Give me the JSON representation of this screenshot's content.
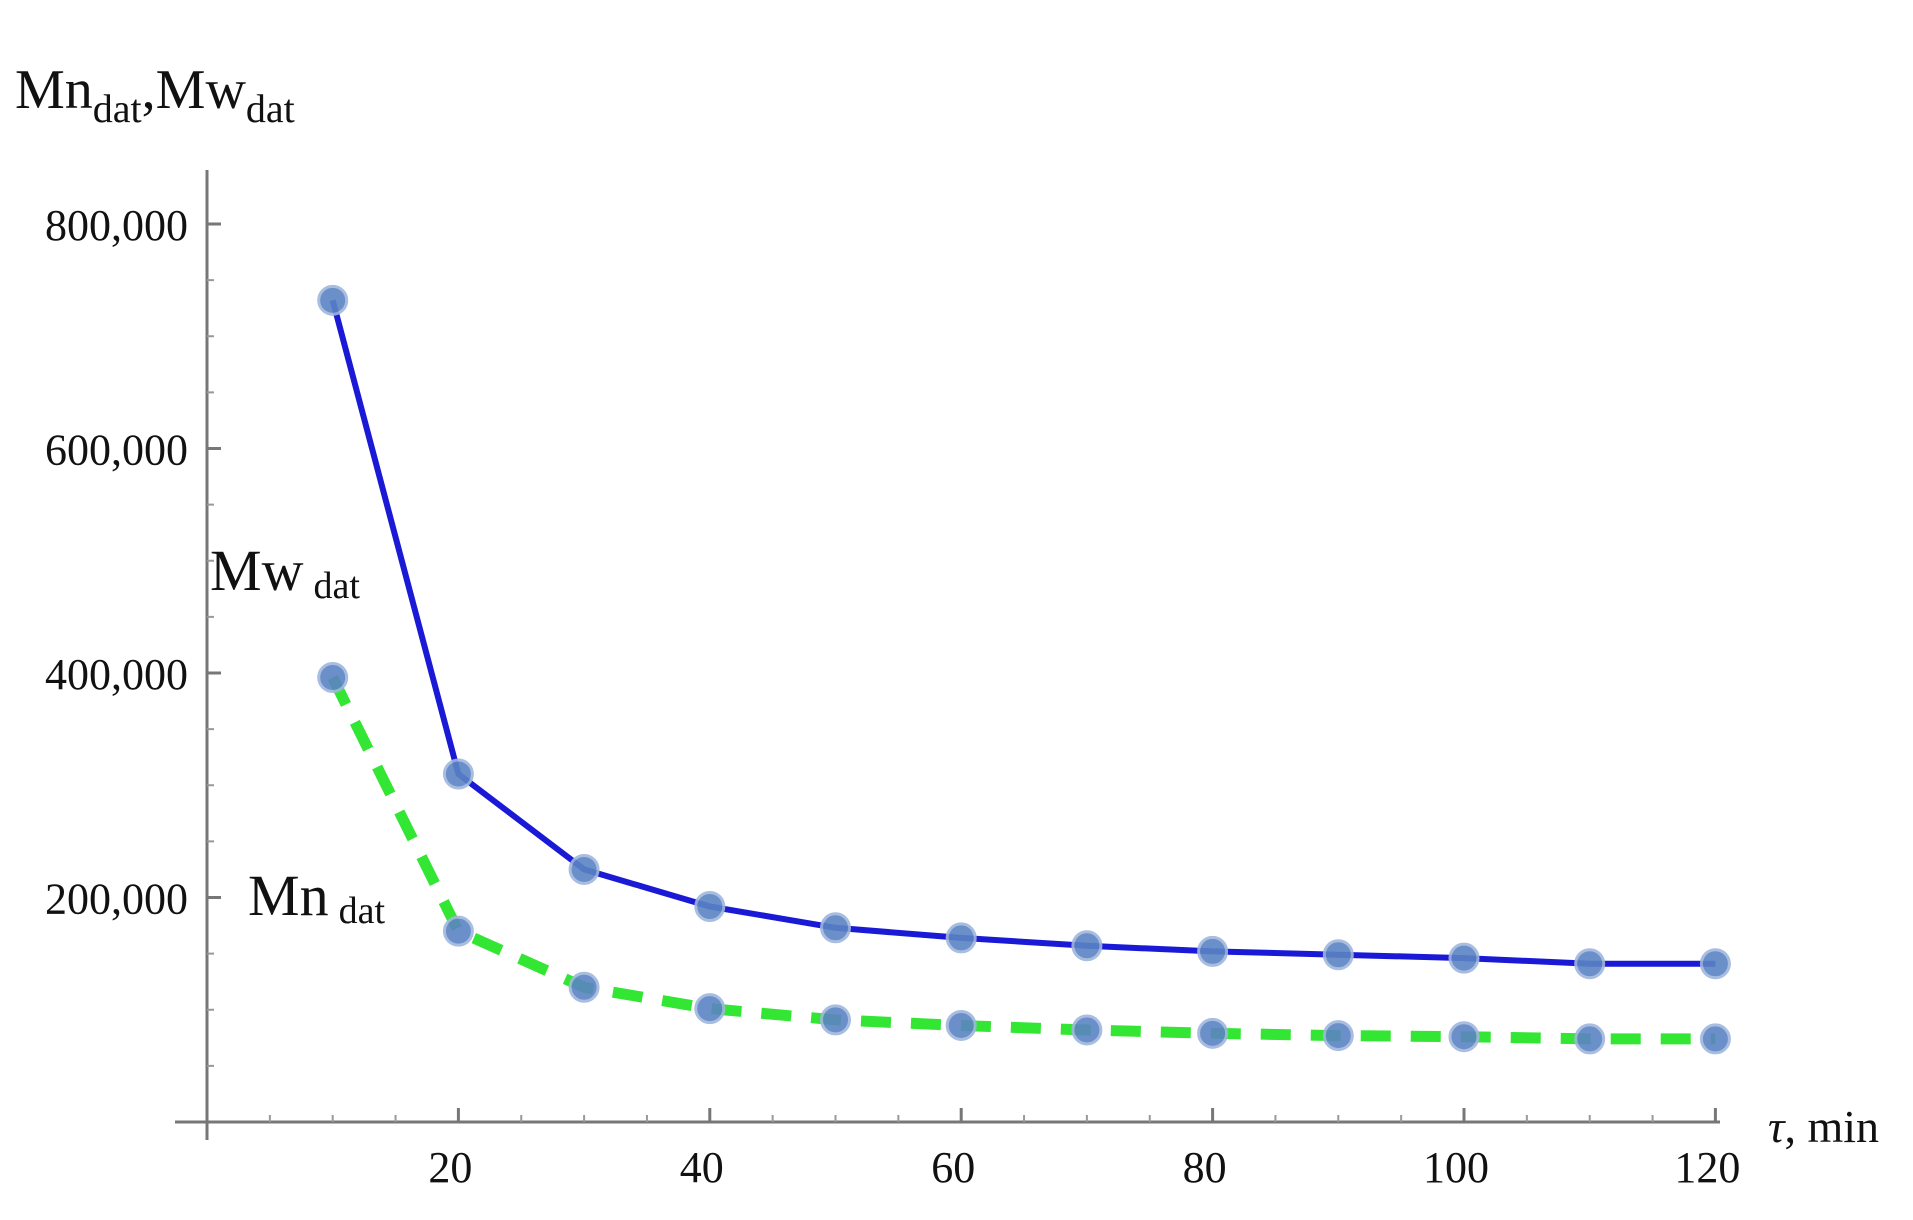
{
  "chart_data": {
    "type": "line",
    "title": "",
    "ylabel": {
      "main1": "Mn",
      "sub1": "dat",
      "sep": ",",
      "main2": "Mw",
      "sub2": "dat"
    },
    "xlabel": {
      "main": "τ",
      "rest": ", min"
    },
    "x": [
      10,
      20,
      30,
      40,
      50,
      60,
      70,
      80,
      90,
      100,
      110,
      120
    ],
    "xlim": [
      0,
      122
    ],
    "ylim": [
      0,
      800000
    ],
    "xticks": [
      20,
      40,
      60,
      80,
      100,
      120
    ],
    "xtick_labels": [
      "20",
      "40",
      "60",
      "80",
      "100",
      "120"
    ],
    "yticks": [
      200000,
      400000,
      600000,
      800000
    ],
    "ytick_labels": [
      "200,000",
      "400,000",
      "600,000",
      "800,000"
    ],
    "grid": false,
    "series": [
      {
        "key": "mw",
        "label": {
          "main": "Mw",
          "sub": "dat"
        },
        "color": "#1a1ad6",
        "style": "solid",
        "values": [
          732000,
          310000,
          225000,
          192000,
          173000,
          164000,
          157000,
          152000,
          149000,
          146000,
          141000,
          141000
        ]
      },
      {
        "key": "mn",
        "label": {
          "main": "Mn",
          "sub": "dat"
        },
        "color": "#33e633",
        "style": "dashed",
        "values": [
          396000,
          170000,
          120000,
          101000,
          91000,
          86000,
          82000,
          79000,
          77000,
          76000,
          74000,
          74000
        ]
      }
    ],
    "marker_color": "#5b84c4"
  }
}
